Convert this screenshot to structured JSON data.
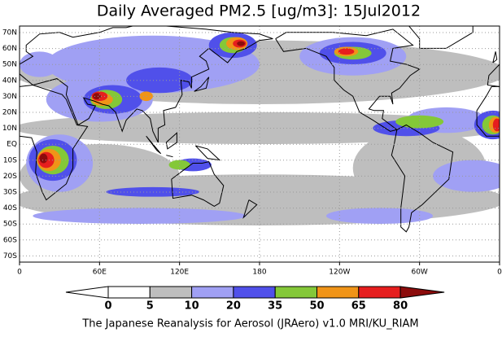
{
  "header": {
    "title": "Daily Averaged PM2.5 [ug/m3]: 15Jul2012"
  },
  "map": {
    "lat_labels": [
      "70N",
      "60N",
      "50N",
      "40N",
      "30N",
      "20N",
      "10N",
      "EQ",
      "10S",
      "20S",
      "30S",
      "40S",
      "50S",
      "60S",
      "70S"
    ],
    "lon_labels": [
      "0",
      "60E",
      "120E",
      "180",
      "120W",
      "60W",
      "0"
    ]
  },
  "colorbar": {
    "levels": [
      0,
      5,
      10,
      20,
      35,
      50,
      65,
      80
    ],
    "colors": [
      "#ffffff",
      "#ffffff",
      "#bebebe",
      "#a0a0f4",
      "#5050ea",
      "#84c838",
      "#f09418",
      "#e61e1e",
      "#8c0c0c"
    ]
  },
  "footer": {
    "text": "The Japanese Reanalysis for Aerosol (JRAero) v1.0 MRI/KU_RIAM"
  }
}
